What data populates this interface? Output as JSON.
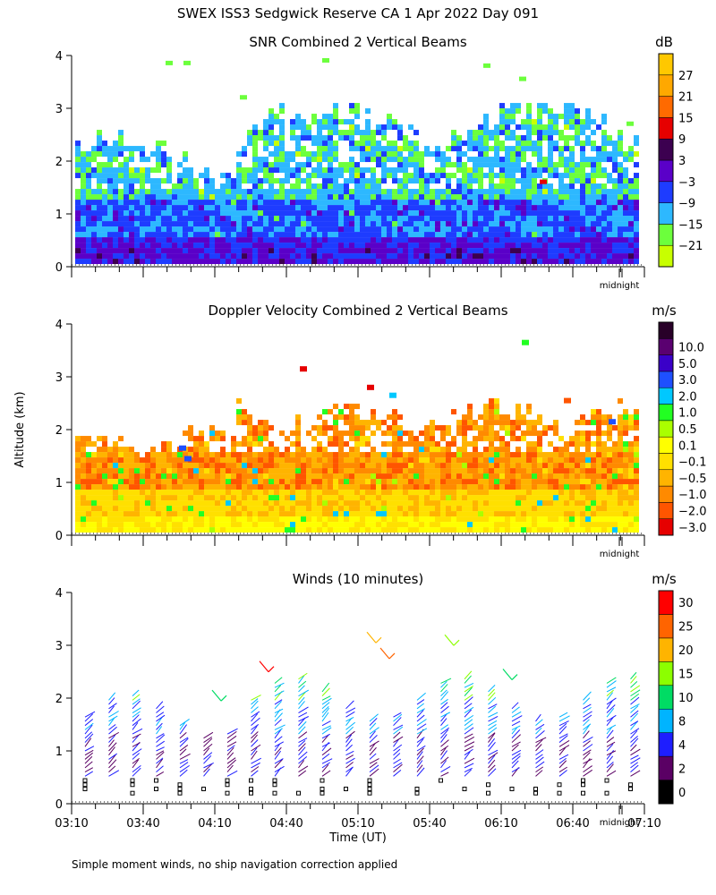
{
  "header": {
    "title": "SWEX ISS3 Sedgwick Reserve CA    1 Apr 2022 Day 091"
  },
  "y_axis_label": "Altitude (km)",
  "x_axis_label": "Time (UT)",
  "midnight_label": "midnight",
  "footnote": "Simple moment winds, no ship navigation correction applied",
  "time_ticks": [
    "03:10",
    "03:40",
    "04:10",
    "04:40",
    "05:10",
    "05:40",
    "06:10",
    "06:40",
    "07:10"
  ],
  "altitude_ticks": [
    "0",
    "1",
    "2",
    "3",
    "4"
  ],
  "colors": {
    "white": "#ffffff",
    "black": "#000000"
  },
  "chart_data": [
    {
      "type": "heatmap",
      "title": "SNR Combined 2 Vertical Beams",
      "units": "dB",
      "xlabel": "Time (UT)",
      "ylabel": "Altitude (km)",
      "xlim": [
        "03:10",
        "07:10"
      ],
      "ylim": [
        0,
        4
      ],
      "colorbar": [
        {
          "label": "",
          "color": "#c8ff00"
        },
        {
          "label": "−21",
          "color": "#6cff3c"
        },
        {
          "label": "−15",
          "color": "#2db8ff"
        },
        {
          "label": "−9",
          "color": "#1e3cff"
        },
        {
          "label": "−3",
          "color": "#5a00c8"
        },
        {
          "label": "3",
          "color": "#3c0050"
        },
        {
          "label": "9",
          "color": "#e60000"
        },
        {
          "label": "15",
          "color": "#ff6a00"
        },
        {
          "label": "21",
          "color": "#ffa800"
        },
        {
          "label": "27",
          "color": "#ffc800"
        }
      ]
    },
    {
      "type": "heatmap",
      "title": "Doppler Velocity Combined 2 Vertical Beams",
      "units": "m/s",
      "xlabel": "Time (UT)",
      "ylabel": "Altitude (km)",
      "xlim": [
        "03:10",
        "07:10"
      ],
      "ylim": [
        0,
        4
      ],
      "colorbar": [
        {
          "label": "−3.0",
          "color": "#e60000"
        },
        {
          "label": "−2.0",
          "color": "#ff5500"
        },
        {
          "label": "−1.0",
          "color": "#ff8a00"
        },
        {
          "label": "−0.5",
          "color": "#ffb400"
        },
        {
          "label": "−0.1",
          "color": "#ffe000"
        },
        {
          "label": "0.1",
          "color": "#ffff00"
        },
        {
          "label": "0.5",
          "color": "#aaff00"
        },
        {
          "label": "1.0",
          "color": "#22ff22"
        },
        {
          "label": "2.0",
          "color": "#00c8ff"
        },
        {
          "label": "3.0",
          "color": "#1e50ff"
        },
        {
          "label": "5.0",
          "color": "#3a00c8"
        },
        {
          "label": "10.0",
          "color": "#5a0070"
        },
        {
          "label": "",
          "color": "#280028"
        }
      ]
    },
    {
      "type": "scatter",
      "title": "Winds (10 minutes)",
      "units": "m/s",
      "xlabel": "Time (UT)",
      "ylabel": "Altitude (km)",
      "xlim": [
        "03:10",
        "07:10"
      ],
      "ylim": [
        0,
        4
      ],
      "colorbar": [
        {
          "label": "0",
          "color": "#000000"
        },
        {
          "label": "2",
          "color": "#5a0064"
        },
        {
          "label": "4",
          "color": "#1e1eff"
        },
        {
          "label": "8",
          "color": "#00b4ff"
        },
        {
          "label": "10",
          "color": "#00dc64"
        },
        {
          "label": "15",
          "color": "#8cff00"
        },
        {
          "label": "20",
          "color": "#ffb400"
        },
        {
          "label": "25",
          "color": "#ff6400"
        },
        {
          "label": "30",
          "color": "#ff0000"
        }
      ]
    }
  ]
}
